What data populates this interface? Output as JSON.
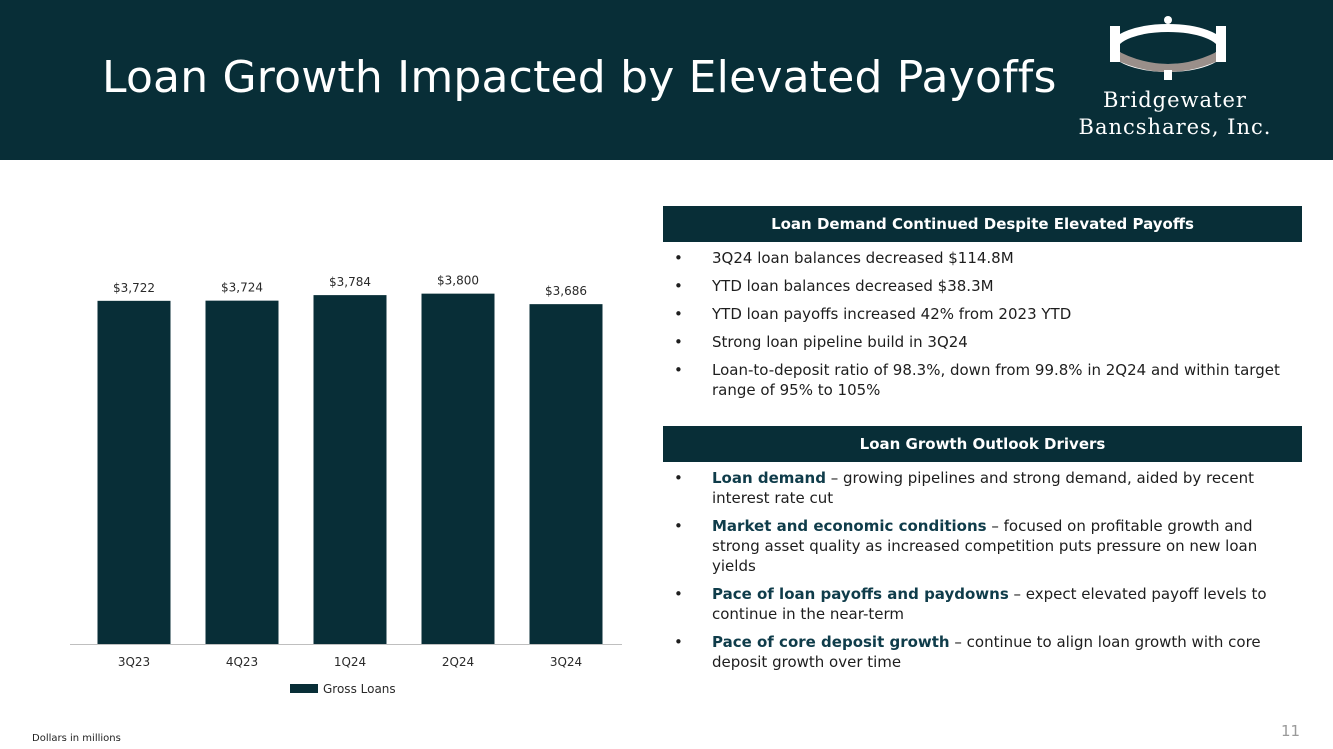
{
  "slide": {
    "title": "Loan Growth Impacted by Elevated Payoffs",
    "page_number": "11",
    "footnote": "Dollars in millions"
  },
  "logo": {
    "line1": "Bridgewater",
    "line2": "Bancshares, Inc."
  },
  "colors": {
    "header_bg": "#082e37",
    "bar": "#082e37",
    "accent_text": "#0f3c4a",
    "logo_gray": "#9a8f8a"
  },
  "chart_data": {
    "type": "bar",
    "title": "",
    "xlabel": "",
    "ylabel": "",
    "categories": [
      "3Q23",
      "4Q23",
      "1Q24",
      "2Q24",
      "3Q24"
    ],
    "values": [
      3722,
      3724,
      3784,
      3800,
      3686
    ],
    "value_labels": [
      "$3,722",
      "$3,724",
      "$3,784",
      "$3,800",
      "$3,686"
    ],
    "series": [
      {
        "name": "Gross Loans",
        "values": [
          3722,
          3724,
          3784,
          3800,
          3686
        ]
      }
    ],
    "legend": [
      "Gross Loans"
    ],
    "legend_position": "bottom",
    "grid": false
  },
  "panel1": {
    "header": "Loan Demand Continued Despite Elevated Payoffs",
    "bullets": [
      {
        "text": "3Q24 loan balances decreased $114.8M"
      },
      {
        "text": "YTD loan balances decreased $38.3M"
      },
      {
        "text": "YTD loan payoffs increased 42% from 2023 YTD"
      },
      {
        "text": "Strong loan pipeline build in 3Q24"
      },
      {
        "text": "Loan-to-deposit ratio of 98.3%, down from 99.8% in 2Q24 and within target range of 95% to 105%"
      }
    ]
  },
  "panel2": {
    "header": "Loan Growth Outlook Drivers",
    "bullets": [
      {
        "lead": "Loan demand",
        "text": " – growing pipelines and strong demand, aided by recent interest rate cut"
      },
      {
        "lead": "Market and economic conditions",
        "text": " – focused on profitable growth and strong asset quality as increased competition puts pressure on new loan yields"
      },
      {
        "lead": "Pace of loan payoffs and paydowns",
        "text": " – expect elevated payoff levels to continue in the near-term"
      },
      {
        "lead": "Pace of core deposit growth",
        "text": " – continue to align loan growth with core deposit growth over time"
      }
    ]
  }
}
